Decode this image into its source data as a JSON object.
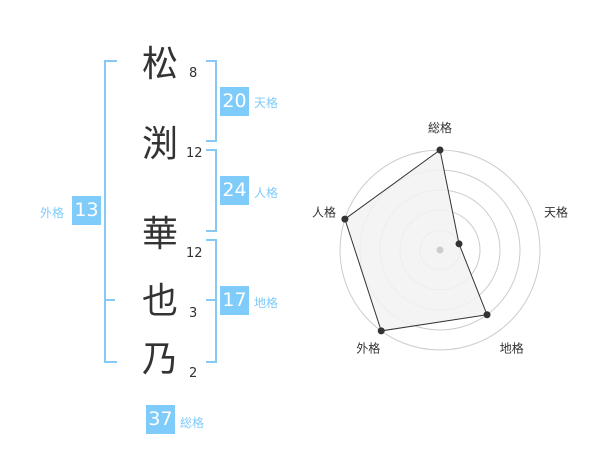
{
  "name": {
    "chars": [
      {
        "char": "松",
        "strokes": "8"
      },
      {
        "char": "渕",
        "strokes": "12"
      },
      {
        "char": "華",
        "strokes": "12"
      },
      {
        "char": "也",
        "strokes": "3"
      },
      {
        "char": "乃",
        "strokes": "2"
      }
    ]
  },
  "fortunes": {
    "tenkaku": {
      "label": "天格",
      "value": "20"
    },
    "jinkaku": {
      "label": "人格",
      "value": "24"
    },
    "chikaku": {
      "label": "地格",
      "value": "17"
    },
    "gaikaku": {
      "label": "外格",
      "value": "13"
    },
    "soukaku": {
      "label": "総格",
      "value": "37"
    }
  },
  "radar": {
    "axes": [
      "総格",
      "天格",
      "地格",
      "外格",
      "人格"
    ],
    "values": [
      5,
      1,
      4,
      5,
      5
    ],
    "max": 5,
    "colors": {
      "accent": "#7fcbfa",
      "fill": "#f2f2f2",
      "line": "#333333",
      "grid": "#cccccc"
    }
  }
}
